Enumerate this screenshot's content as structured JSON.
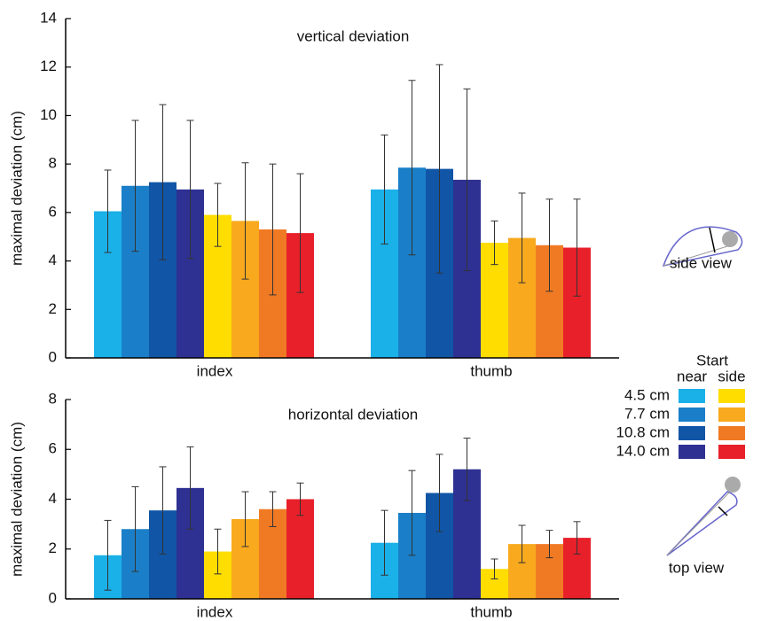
{
  "chart_data": [
    {
      "type": "bar",
      "subtitle": "vertical deviation",
      "y_label": "maximal deviation (cm)",
      "categories": [
        "index",
        "thumb"
      ],
      "ylim": [
        0,
        14
      ],
      "yticks": [
        0,
        2,
        4,
        6,
        8,
        10,
        12,
        14
      ],
      "series": [
        {
          "color": "#1ab0e8",
          "values": [
            6.05,
            6.95
          ],
          "errors": [
            1.7,
            2.25
          ]
        },
        {
          "color": "#1a7fc8",
          "values": [
            7.1,
            7.85
          ],
          "errors": [
            2.7,
            3.6
          ]
        },
        {
          "color": "#1155a6",
          "values": [
            7.25,
            7.8
          ],
          "errors": [
            3.2,
            4.3
          ]
        },
        {
          "color": "#2e3192",
          "values": [
            6.95,
            7.35
          ],
          "errors": [
            2.85,
            3.75
          ]
        },
        {
          "color": "#ffdd00",
          "values": [
            5.9,
            4.75
          ],
          "errors": [
            1.3,
            0.9
          ]
        },
        {
          "color": "#f8a91d",
          "values": [
            5.65,
            4.95
          ],
          "errors": [
            2.4,
            1.85
          ]
        },
        {
          "color": "#f07a24",
          "values": [
            5.3,
            4.65
          ],
          "errors": [
            2.7,
            1.9
          ]
        },
        {
          "color": "#e8202a",
          "values": [
            5.15,
            4.55
          ],
          "errors": [
            2.45,
            2.0
          ]
        }
      ]
    },
    {
      "type": "bar",
      "subtitle": "horizontal deviation",
      "y_label": "maximal deviation (cm)",
      "categories": [
        "index",
        "thumb"
      ],
      "ylim": [
        0,
        8
      ],
      "yticks": [
        0,
        2,
        4,
        6,
        8
      ],
      "series": [
        {
          "color": "#1ab0e8",
          "values": [
            1.75,
            2.25
          ],
          "errors": [
            1.4,
            1.3
          ]
        },
        {
          "color": "#1a7fc8",
          "values": [
            2.8,
            3.45
          ],
          "errors": [
            1.7,
            1.7
          ]
        },
        {
          "color": "#1155a6",
          "values": [
            3.55,
            4.25
          ],
          "errors": [
            1.75,
            1.55
          ]
        },
        {
          "color": "#2e3192",
          "values": [
            4.45,
            5.2
          ],
          "errors": [
            1.65,
            1.25
          ]
        },
        {
          "color": "#ffdd00",
          "values": [
            1.9,
            1.2
          ],
          "errors": [
            0.9,
            0.4
          ]
        },
        {
          "color": "#f8a91d",
          "values": [
            3.2,
            2.2
          ],
          "errors": [
            1.1,
            0.75
          ]
        },
        {
          "color": "#f07a24",
          "values": [
            3.6,
            2.2
          ],
          "errors": [
            0.7,
            0.55
          ]
        },
        {
          "color": "#e8202a",
          "values": [
            4.0,
            2.45
          ],
          "errors": [
            0.65,
            0.65
          ]
        }
      ]
    }
  ],
  "legend": {
    "title": "Start",
    "columns": [
      "near",
      "side"
    ],
    "rows": [
      "4.5 cm",
      "7.7 cm",
      "10.8 cm",
      "14.0 cm"
    ]
  },
  "icons": [
    "side view",
    "top view"
  ]
}
